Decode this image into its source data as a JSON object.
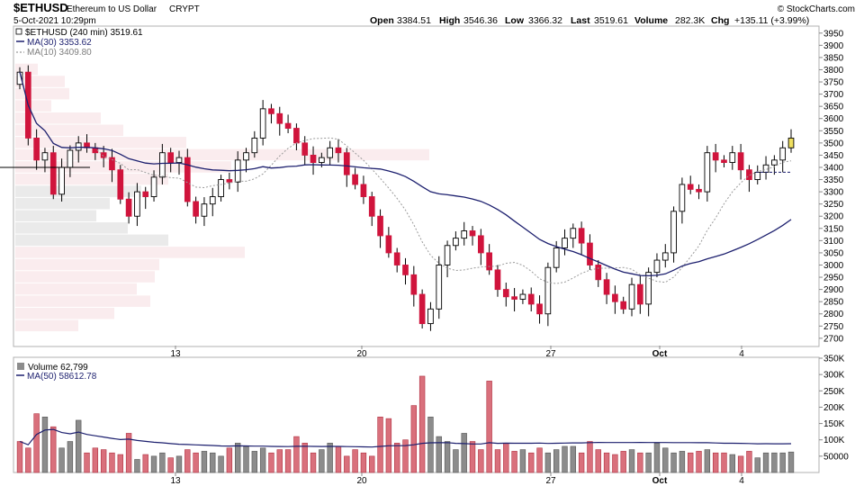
{
  "header": {
    "symbol": "$ETHUSD",
    "name": "Ethereum to US Dollar",
    "exchange": "CRYPT",
    "date": "5-Oct-2021 10:29pm",
    "copyright": "© StockCharts.com",
    "open_label": "Open",
    "open": "3384.51",
    "high_label": "High",
    "high": "3546.36",
    "low_label": "Low",
    "low": "3366.32",
    "last_label": "Last",
    "last": "3519.61",
    "volume_label": "Volume",
    "volume": "282.3K",
    "chg_label": "Chg",
    "chg": "+135.11 (+3.99%)"
  },
  "legend": {
    "main": "$ETHUSD (240 min) 3519.61",
    "ma30": "MA(30) 3353.62",
    "ma10": "MA(10) 3409.80",
    "volume": "Volume 62,799",
    "vol_ma": "MA(50) 58612.78"
  },
  "colors": {
    "up": "#ffffff",
    "down": "#d0143c",
    "ma30": "#1c1f6e",
    "ma10": "#9a9a9a",
    "vol_up": "#8c8c8c",
    "vol_down": "#d9707c",
    "last_bar": "#f0e060"
  },
  "chart_data": {
    "type": "candlestick",
    "x_tick_labels": [
      "13",
      "20",
      "27",
      "Oct",
      "4"
    ],
    "price_ticks": [
      "3950",
      "3900",
      "3850",
      "3800",
      "3750",
      "3700",
      "3650",
      "3600",
      "3550",
      "3500",
      "3450",
      "3400",
      "3350",
      "3300",
      "3250",
      "3200",
      "3150",
      "3100",
      "3050",
      "3000",
      "2950",
      "2900",
      "2850",
      "2800",
      "2750",
      "2700"
    ],
    "price_ylim": [
      2670,
      3975
    ],
    "volume_ticks": [
      "350K",
      "300K",
      "250K",
      "200K",
      "150K",
      "100K",
      "50000"
    ],
    "volume_ylim": [
      0,
      350000
    ],
    "closes": [
      3790,
      3520,
      3430,
      3460,
      3290,
      3400,
      3470,
      3500,
      3480,
      3460,
      3440,
      3390,
      3270,
      3200,
      3300,
      3280,
      3360,
      3460,
      3420,
      3440,
      3260,
      3200,
      3250,
      3280,
      3350,
      3340,
      3430,
      3460,
      3520,
      3640,
      3620,
      3580,
      3560,
      3500,
      3450,
      3420,
      3440,
      3480,
      3460,
      3370,
      3330,
      3280,
      3200,
      3120,
      3050,
      3000,
      2960,
      2880,
      2760,
      2820,
      3000,
      3080,
      3110,
      3140,
      3120,
      3050,
      2980,
      2900,
      2870,
      2860,
      2880,
      2840,
      2800,
      2990,
      3070,
      3110,
      3150,
      3090,
      3000,
      2940,
      2880,
      2850,
      2820,
      2920,
      2840,
      2970,
      3020,
      3050,
      3220,
      3330,
      3310,
      3300,
      3460,
      3430,
      3420,
      3460,
      3390,
      3350,
      3380,
      3410,
      3430,
      3480,
      3520
    ],
    "price_ma30_label": "MA(30)",
    "price_ma10_label": "MA(10)",
    "volume_ma_label": "MA(50)",
    "volume_levels": [
      95,
      75,
      180,
      170,
      140,
      75,
      95,
      160,
      60,
      75,
      70,
      60,
      55,
      120,
      40,
      55,
      50,
      60,
      45,
      50,
      70,
      60,
      65,
      60,
      50,
      75,
      90,
      80,
      65,
      75,
      60,
      70,
      70,
      110,
      90,
      60,
      70,
      90,
      80,
      50,
      70,
      60,
      50,
      170,
      165,
      90,
      100,
      205,
      295,
      170,
      110,
      95,
      70,
      120,
      95,
      70,
      280,
      70,
      90,
      65,
      70,
      60,
      75,
      60,
      70,
      80,
      80,
      60,
      95,
      70,
      60,
      55,
      65,
      70,
      60,
      60,
      90,
      75,
      60,
      65,
      60,
      65,
      70,
      60,
      60,
      55,
      50,
      65,
      45,
      60,
      60,
      60,
      62.8
    ]
  }
}
